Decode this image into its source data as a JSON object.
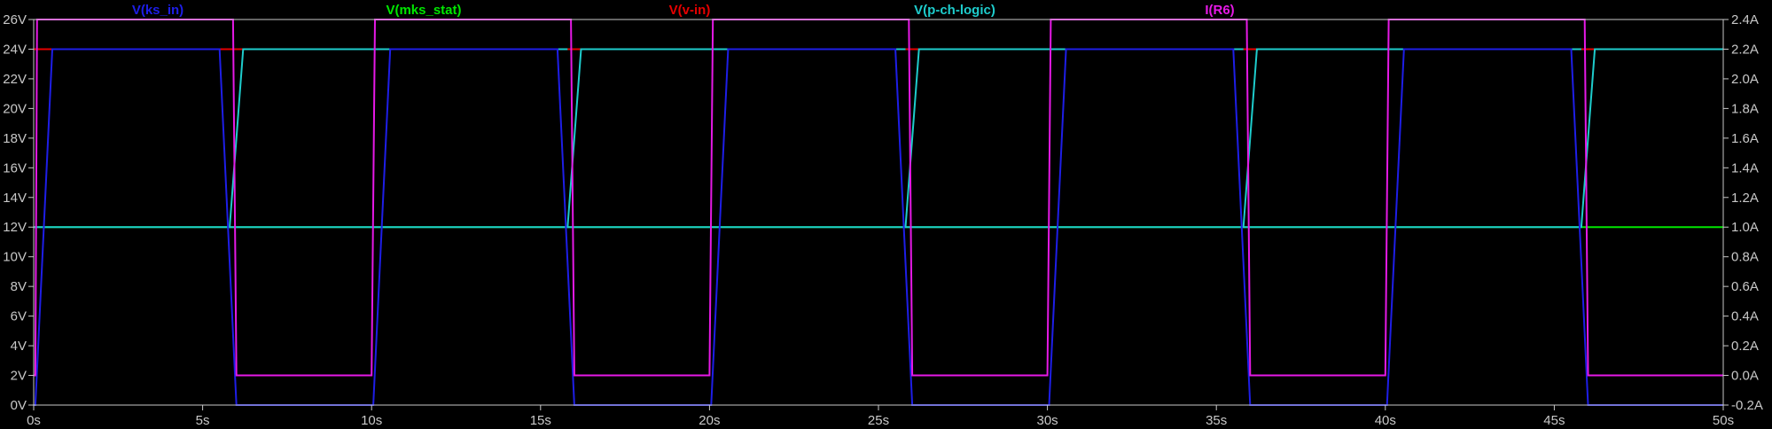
{
  "chart_data": {
    "type": "line",
    "background": "#000000",
    "grid": false,
    "x_axis": {
      "range": [
        0,
        50
      ],
      "ticks": [
        0,
        5,
        10,
        15,
        20,
        25,
        30,
        35,
        40,
        45,
        50
      ],
      "tick_labels": [
        "0s",
        "5s",
        "10s",
        "15s",
        "20s",
        "25s",
        "30s",
        "35s",
        "40s",
        "45s",
        "50s"
      ]
    },
    "y_axis_left": {
      "range": [
        0,
        26
      ],
      "ticks": [
        0,
        2,
        4,
        6,
        8,
        10,
        12,
        14,
        16,
        18,
        20,
        22,
        24,
        26
      ],
      "tick_labels": [
        "0V",
        "2V",
        "4V",
        "6V",
        "8V",
        "10V",
        "12V",
        "14V",
        "16V",
        "18V",
        "20V",
        "22V",
        "24V",
        "26V"
      ]
    },
    "y_axis_right": {
      "range": [
        -0.2,
        2.4
      ],
      "ticks": [
        -0.2,
        0.0,
        0.2,
        0.4,
        0.6,
        0.8,
        1.0,
        1.2,
        1.4,
        1.6,
        1.8,
        2.0,
        2.2,
        2.4
      ],
      "tick_labels": [
        "-0.2A",
        "0.0A",
        "0.2A",
        "0.4A",
        "0.6A",
        "0.8A",
        "1.0A",
        "1.2A",
        "1.4A",
        "1.6A",
        "1.8A",
        "2.0A",
        "2.2A",
        "2.4A"
      ]
    },
    "series": [
      {
        "name": "V(ks_in)",
        "color": "#1e1ee6",
        "axis": "left",
        "x": [
          0,
          0.05,
          0.55,
          5.5,
          6.0,
          10.0,
          10.05,
          10.55,
          15.5,
          16.0,
          20.0,
          20.05,
          20.55,
          25.5,
          26.0,
          30.0,
          30.05,
          30.55,
          35.5,
          36.0,
          40.0,
          40.05,
          40.55,
          45.5,
          46.0,
          50.0
        ],
        "y": [
          0,
          0,
          24,
          24,
          0,
          0,
          0,
          24,
          24,
          0,
          0,
          0,
          24,
          24,
          0,
          0,
          0,
          24,
          24,
          0,
          0,
          0,
          24,
          24,
          0,
          0
        ]
      },
      {
        "name": "V(mks_stat)",
        "color": "#00e600",
        "axis": "left",
        "x": [
          0,
          50
        ],
        "y": [
          12,
          12
        ]
      },
      {
        "name": "V(v-in)",
        "color": "#e60000",
        "axis": "left",
        "x": [
          0,
          50
        ],
        "y": [
          24,
          24
        ]
      },
      {
        "name": "V(p-ch-logic)",
        "color": "#1ecccc",
        "axis": "left",
        "x": [
          0,
          5.9,
          5.9,
          6.2,
          16.0,
          16.0,
          15.9,
          15.9,
          16.2,
          25.9,
          25.9,
          26.2,
          35.9,
          35.9,
          36.2,
          45.9,
          45.9,
          46.2,
          50.0
        ],
        "y": [
          12,
          12,
          12,
          24,
          24,
          12,
          12,
          12,
          24,
          24,
          12,
          24,
          24,
          12,
          24,
          24,
          12,
          24,
          24
        ],
        "segments": [
          {
            "x": [
              0,
              5.8,
              6.2,
              15.8,
              15.8
            ],
            "y": [
              12,
              12,
              24,
              24,
              24
            ]
          },
          {
            "x": [
              5.8,
              15.8,
              16.2,
              25.8
            ],
            "y": [
              12,
              12,
              24,
              24
            ]
          },
          {
            "x": [
              15.8,
              25.8,
              26.2,
              35.8
            ],
            "y": [
              12,
              12,
              24,
              24
            ]
          },
          {
            "x": [
              25.8,
              35.8,
              36.2,
              45.8
            ],
            "y": [
              12,
              12,
              24,
              24
            ]
          },
          {
            "x": [
              35.8,
              45.8,
              46.2,
              50.0
            ],
            "y": [
              12,
              12,
              24,
              24
            ]
          }
        ]
      },
      {
        "name": "I(R6)",
        "color": "#e619e6",
        "axis": "right",
        "x": [
          0,
          0.05,
          0.1,
          5.9,
          6.0,
          10.0,
          10.1,
          15.9,
          16.0,
          20.0,
          20.1,
          25.9,
          26.0,
          30.0,
          30.1,
          35.9,
          36.0,
          40.0,
          40.1,
          45.9,
          46.0,
          50.0
        ],
        "y": [
          0.0,
          0.0,
          2.4,
          2.4,
          0.0,
          0.0,
          2.4,
          2.4,
          0.0,
          0.0,
          2.4,
          2.4,
          0.0,
          0.0,
          2.4,
          2.4,
          0.0,
          0.0,
          2.4,
          2.4,
          0.0,
          0.0
        ]
      }
    ],
    "legend": [
      "V(ks_in)",
      "V(mks_stat)",
      "V(v-in)",
      "V(p-ch-logic)",
      "I(R6)"
    ]
  }
}
